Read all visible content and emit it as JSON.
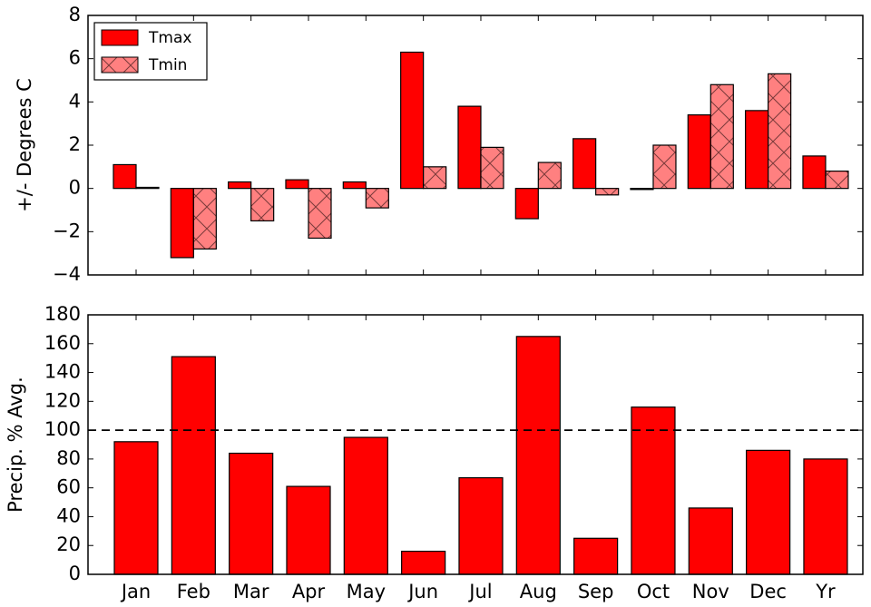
{
  "chart_data": [
    {
      "type": "bar",
      "ylabel": "+/- Degrees C",
      "ylim": [
        -4,
        8
      ],
      "yticks": [
        {
          "value": -4,
          "label": "−4"
        },
        {
          "value": -2,
          "label": "−2"
        },
        0,
        2,
        4,
        6,
        8
      ],
      "legend": "upper left",
      "series": [
        {
          "name": "Tmax",
          "color": "#ff0000",
          "values": [
            1.1,
            -3.2,
            0.3,
            0.4,
            0.3,
            6.3,
            3.8,
            -1.4,
            2.3,
            -0.05,
            3.4,
            3.6,
            1.5
          ]
        },
        {
          "name": "Tmin",
          "color": "#ff8080",
          "hatch": "x",
          "values": [
            0.05,
            -2.8,
            -1.5,
            -2.3,
            -0.9,
            1.0,
            1.9,
            1.2,
            -0.3,
            2.0,
            4.8,
            5.3,
            0.8
          ]
        }
      ]
    },
    {
      "type": "bar",
      "ylabel": "Precip. % Avg.",
      "categories": [
        "Jan",
        "Feb",
        "Mar",
        "Apr",
        "May",
        "Jun",
        "Jul",
        "Aug",
        "Sep",
        "Oct",
        "Nov",
        "Dec",
        "Yr"
      ],
      "values": [
        92,
        151,
        84,
        61,
        95,
        16,
        67,
        165,
        25,
        116,
        46,
        86,
        80
      ],
      "color": "#ff0000",
      "ylim": [
        0,
        180
      ],
      "yticks": [
        0,
        20,
        40,
        60,
        80,
        100,
        120,
        140,
        160,
        180
      ],
      "hline": 100
    }
  ]
}
